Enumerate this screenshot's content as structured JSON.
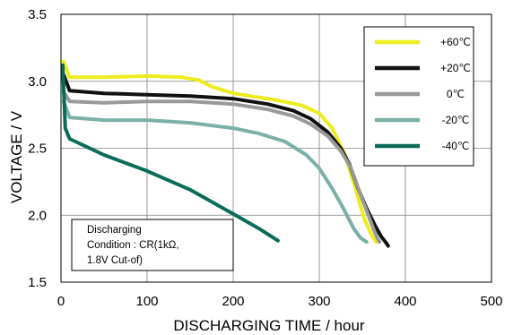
{
  "chart_data": {
    "type": "line",
    "xlabel": "DISCHARGING TIME / hour",
    "ylabel": "VOLTAGE / V",
    "xlim": [
      0,
      500
    ],
    "ylim": [
      1.5,
      3.5
    ],
    "x_ticks": [
      "0",
      "100",
      "200",
      "300",
      "400",
      "500"
    ],
    "y_ticks": [
      "1.5",
      "2.0",
      "2.5",
      "3.0",
      "3.5"
    ],
    "grid": true,
    "legend_position": "top-right",
    "annotation": [
      "Discharging",
      "Condition : CR(1kΩ,",
      "1.8V Cut-of)"
    ],
    "series": [
      {
        "name": "+60℃",
        "color": "#ecec1e",
        "x": [
          3,
          10,
          50,
          100,
          140,
          160,
          175,
          200,
          220,
          250,
          280,
          300,
          315,
          330,
          342,
          352,
          360,
          366
        ],
        "y": [
          3.15,
          3.03,
          3.03,
          3.04,
          3.03,
          3.01,
          2.96,
          2.91,
          2.89,
          2.86,
          2.82,
          2.76,
          2.65,
          2.45,
          2.2,
          1.98,
          1.86,
          1.8
        ]
      },
      {
        "name": "+20℃",
        "color": "#111111",
        "x": [
          3,
          10,
          50,
          100,
          150,
          200,
          240,
          270,
          290,
          310,
          325,
          335,
          345,
          355,
          365,
          372,
          378,
          380
        ],
        "y": [
          3.05,
          2.93,
          2.91,
          2.9,
          2.89,
          2.87,
          2.83,
          2.78,
          2.72,
          2.62,
          2.5,
          2.38,
          2.2,
          2.05,
          1.92,
          1.84,
          1.79,
          1.77
        ]
      },
      {
        "name": "0℃",
        "color": "#999999",
        "x": [
          3,
          10,
          50,
          100,
          150,
          200,
          240,
          270,
          290,
          310,
          325,
          337,
          347,
          357,
          364,
          368,
          370
        ],
        "y": [
          2.92,
          2.85,
          2.84,
          2.85,
          2.85,
          2.83,
          2.79,
          2.74,
          2.68,
          2.59,
          2.48,
          2.35,
          2.17,
          2.0,
          1.88,
          1.82,
          1.8
        ]
      },
      {
        "name": "-20℃",
        "color": "#7bb0a6",
        "x": [
          3,
          10,
          50,
          100,
          150,
          200,
          230,
          260,
          285,
          300,
          315,
          328,
          340,
          348,
          355
        ],
        "y": [
          2.85,
          2.73,
          2.71,
          2.71,
          2.69,
          2.65,
          2.61,
          2.55,
          2.45,
          2.35,
          2.2,
          2.05,
          1.9,
          1.83,
          1.8
        ]
      },
      {
        "name": "-40℃",
        "color": "#0a6b58",
        "x": [
          2,
          5,
          10,
          20,
          50,
          100,
          150,
          200,
          230,
          252
        ],
        "y": [
          3.12,
          2.65,
          2.57,
          2.54,
          2.45,
          2.33,
          2.19,
          2.01,
          1.9,
          1.81
        ]
      }
    ]
  }
}
